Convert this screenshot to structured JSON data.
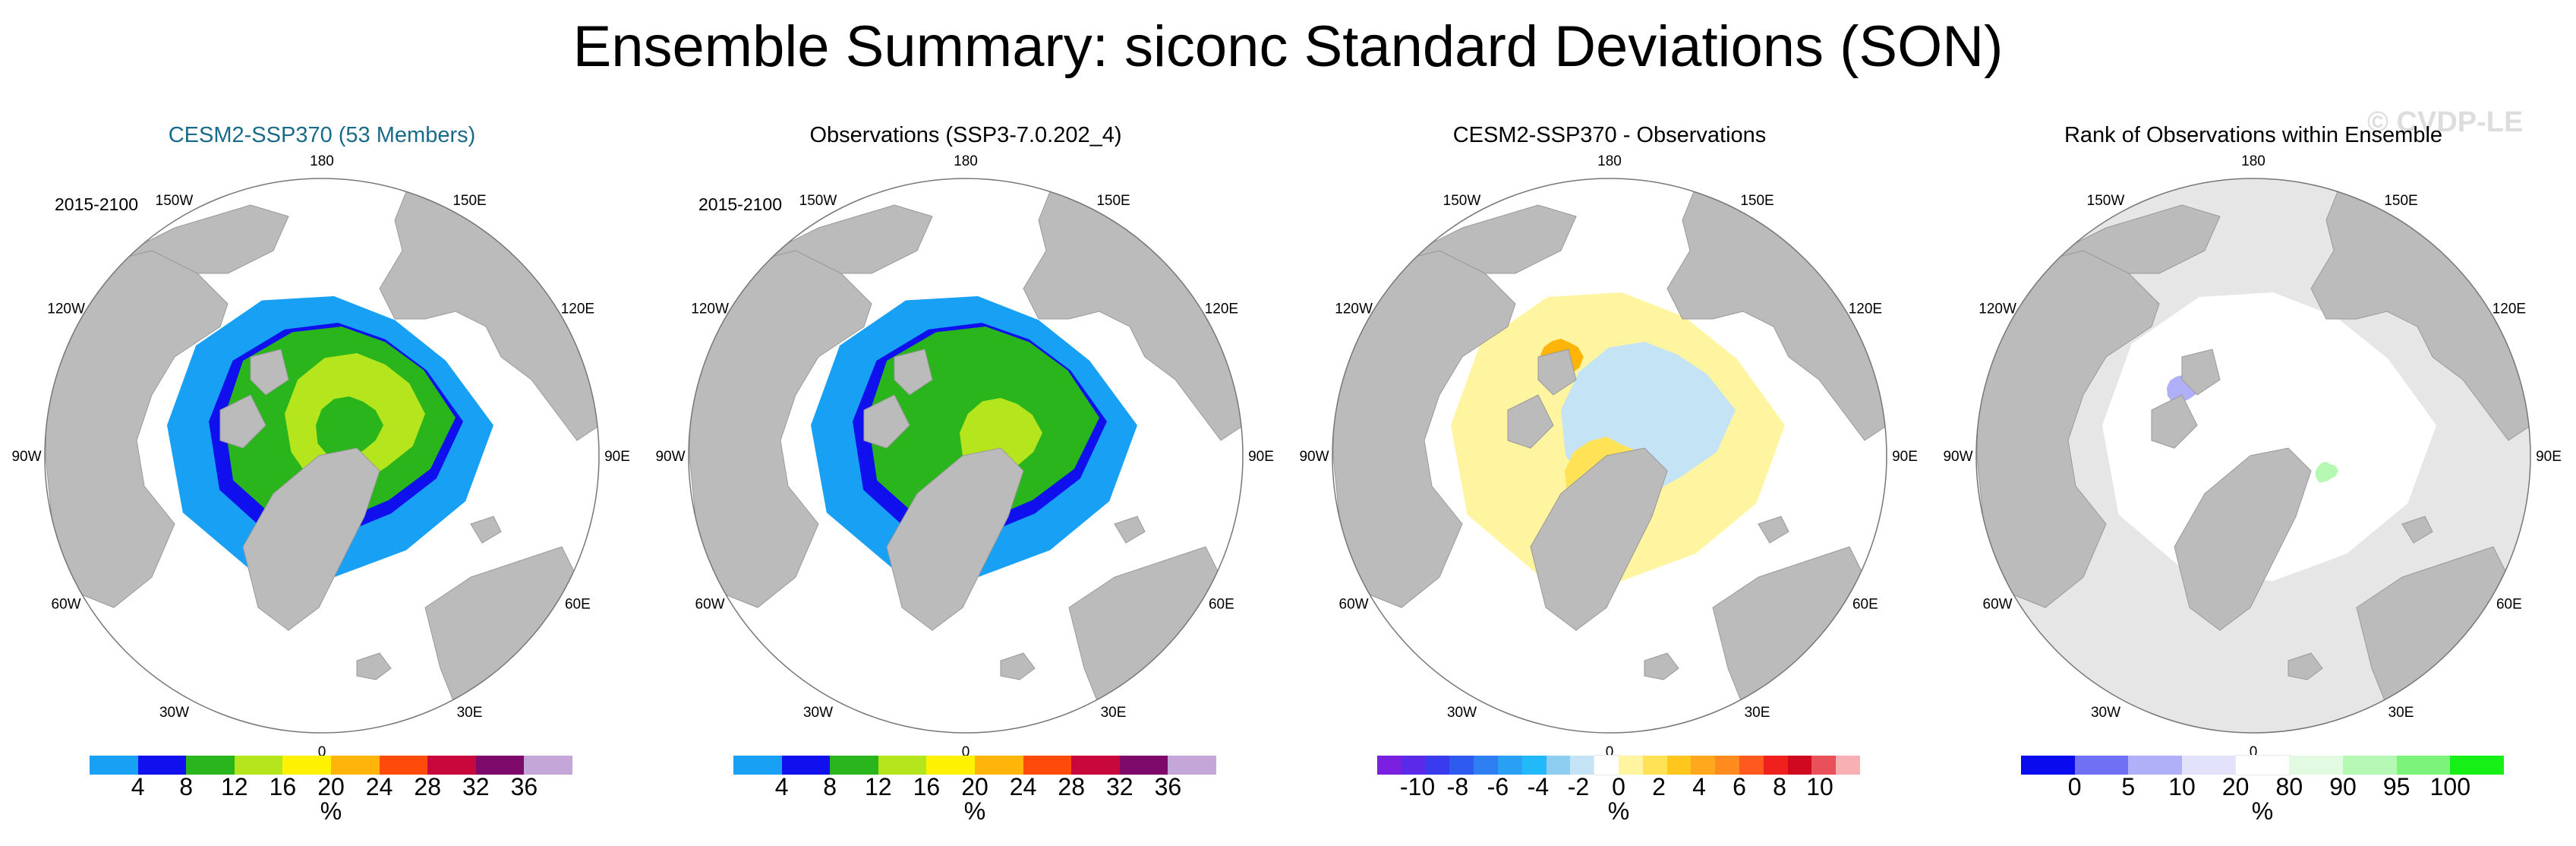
{
  "title": "Ensemble Summary: siconc Standard Deviations (SON)",
  "watermark": "© CVDP-LE",
  "longitude_labels": [
    "180",
    "150E",
    "120E",
    "90E",
    "60E",
    "30E",
    "0",
    "30W",
    "60W",
    "90W",
    "120W",
    "150W"
  ],
  "panels": [
    {
      "title": "CESM2-SSP370 (53 Members)",
      "title_color": "#1a6a8a",
      "period": "2015-2100",
      "colorbar": {
        "colors": [
          "#18a0f5",
          "#1010ee",
          "#2ab51c",
          "#b5e51c",
          "#fff200",
          "#ffb40a",
          "#ff4b0a",
          "#c8083c",
          "#7d0a6a",
          "#c4a7d8"
        ],
        "ticks": [
          "4",
          "8",
          "12",
          "16",
          "20",
          "24",
          "28",
          "32",
          "36"
        ],
        "unit": "%"
      }
    },
    {
      "title": "Observations (SSP3-7.0.202_4)",
      "title_color": "#000000",
      "period": "2015-2100",
      "colorbar": {
        "colors": [
          "#18a0f5",
          "#1010ee",
          "#2ab51c",
          "#b5e51c",
          "#fff200",
          "#ffb40a",
          "#ff4b0a",
          "#c8083c",
          "#7d0a6a",
          "#c4a7d8"
        ],
        "ticks": [
          "4",
          "8",
          "12",
          "16",
          "20",
          "24",
          "28",
          "32",
          "36"
        ],
        "unit": "%"
      }
    },
    {
      "title": "CESM2-SSP370 - Observations",
      "title_color": "#000000",
      "period": "",
      "colorbar": {
        "colors": [
          "#7b1fe0",
          "#5a2ae8",
          "#3a3aef",
          "#2f5af0",
          "#2d7ff2",
          "#2aa0f5",
          "#21b9f7",
          "#8ccdf0",
          "#c4e3f5",
          "#ffffff",
          "#fff5a0",
          "#ffe256",
          "#ffc61e",
          "#ffa81e",
          "#ff8a1e",
          "#ff5a1e",
          "#f0201e",
          "#d00a1e",
          "#e8505a",
          "#f9b0b5"
        ],
        "ticks": [
          "-10",
          "-8",
          "-6",
          "-4",
          "-2",
          "0",
          "2",
          "4",
          "6",
          "8",
          "10"
        ],
        "unit": "%"
      }
    },
    {
      "title": "Rank of Observations within Ensemble",
      "title_color": "#000000",
      "period": "",
      "colorbar": {
        "colors": [
          "#0a0aee",
          "#7070f5",
          "#b0b0f8",
          "#e2e2fa",
          "#ffffff",
          "#e2fae2",
          "#b4f8b4",
          "#7cf47c",
          "#16f016"
        ],
        "ticks": [
          "0",
          "5",
          "10",
          "20",
          "80",
          "90",
          "95",
          "100"
        ],
        "unit": "%"
      }
    }
  ]
}
